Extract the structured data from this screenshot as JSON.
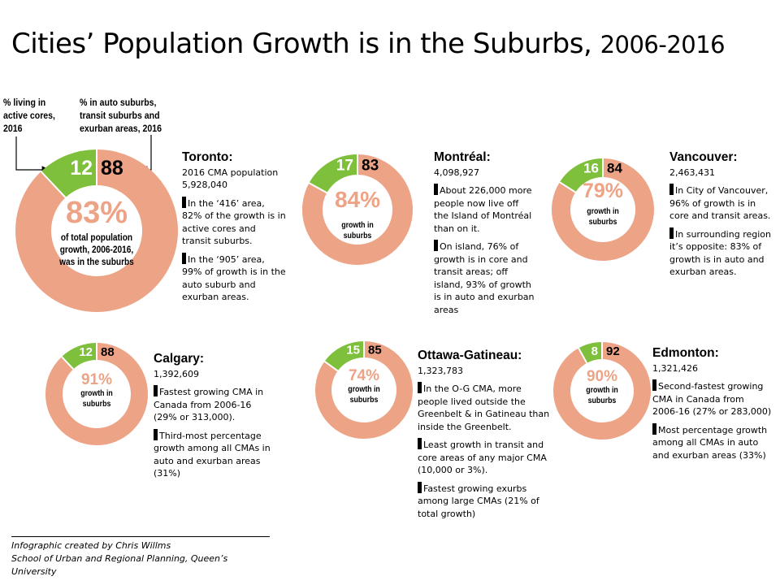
{
  "title": {
    "main": "Cities’ Population Growth is in the Suburbs,",
    "years": "2006-2016"
  },
  "annotations": {
    "active_cores": [
      "% living in",
      "active cores,",
      "2016"
    ],
    "auto_suburbs": [
      "% in auto suburbs,",
      "transit suburbs and",
      "exurban areas, 2016"
    ]
  },
  "colors": {
    "suburb": "#eda386",
    "core": "#7ebf3b",
    "suburb_text": "#ffffff",
    "core_text": "#ffffff"
  },
  "cities": [
    {
      "id": "toronto",
      "core": 12,
      "suburb": 88,
      "growth_pct": "83%",
      "growth_label": [
        "of total population",
        "growth, 2006-2016,",
        "was in the suburbs"
      ],
      "name": "Toronto:",
      "population_label": "2016 CMA population",
      "population": "5,928,040",
      "notes": [
        "In the ‘416’ area, 82% of the growth is in active cores and transit suburbs.",
        "In the ‘905’ area, 99% of growth is in the auto suburb and exurban areas."
      ]
    },
    {
      "id": "montreal",
      "core": 17,
      "suburb": 83,
      "growth_pct": "84%",
      "growth_label": [
        "growth in",
        "suburbs"
      ],
      "name": "Montréal:",
      "population": "4,098,927",
      "notes": [
        "About 226,000 more people now live off the Island of Montréal than on it.",
        "On island, 76% of growth is in core and transit areas; off island, 93% of growth is in auto and exurban areas"
      ]
    },
    {
      "id": "vancouver",
      "core": 16,
      "suburb": 84,
      "growth_pct": "79%",
      "growth_label": [
        "growth in",
        "suburbs"
      ],
      "name": "Vancouver:",
      "population": "2,463,431",
      "notes": [
        "In City of Vancouver, 96% of growth is in core and transit areas.",
        "In surrounding region it’s opposite: 83% of growth is in auto and exurban areas."
      ]
    },
    {
      "id": "calgary",
      "core": 12,
      "suburb": 88,
      "growth_pct": "91%",
      "growth_label": [
        "growth in",
        "suburbs"
      ],
      "name": "Calgary:",
      "population": "1,392,609",
      "notes": [
        "Fastest growing CMA in Canada from 2006-16 (29% or 313,000).",
        "Third-most percentage growth among all CMAs in auto and exurban areas (31%)"
      ]
    },
    {
      "id": "ottawa",
      "core": 15,
      "suburb": 85,
      "growth_pct": "74%",
      "growth_label": [
        "growth in",
        "suburbs"
      ],
      "name": "Ottawa-Gatineau:",
      "population": "1,323,783",
      "notes": [
        "In the O-G CMA, more people lived outside the Greenbelt & in Gatineau than inside the Greenbelt.",
        "Least growth in transit and core areas of any major CMA (10,000 or 3%).",
        "Fastest growing exurbs among large CMAs (21% of total growth)"
      ]
    },
    {
      "id": "edmonton",
      "core": 8,
      "suburb": 92,
      "growth_pct": "90%",
      "growth_label": [
        "growth in",
        "suburbs"
      ],
      "name": "Edmonton:",
      "population": "1,321,426",
      "notes": [
        "Second-fastest growing CMA in Canada from 2006-16 (27% or 283,000)",
        "Most percentage growth among all CMAs in auto and exurban areas (33%)"
      ]
    }
  ],
  "footer": {
    "line1": "Infographic created by Chris Willms",
    "line2": "School of Urban and Regional Planning, Queen’s University"
  }
}
